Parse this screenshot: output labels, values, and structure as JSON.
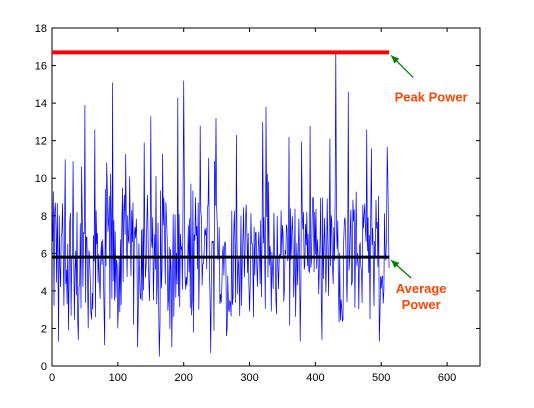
{
  "chart_data": {
    "type": "line",
    "title": "",
    "xlabel": "",
    "ylabel": "",
    "xlim": [
      0,
      650
    ],
    "ylim": [
      0,
      18
    ],
    "xticks": [
      0,
      100,
      200,
      300,
      400,
      500,
      600
    ],
    "yticks": [
      0,
      2,
      4,
      6,
      8,
      10,
      12,
      14,
      16,
      18
    ],
    "x_tick_labels": [
      "0",
      "100",
      "200",
      "300",
      "400",
      "500",
      "600"
    ],
    "y_tick_labels": [
      "0",
      "2",
      "4",
      "6",
      "8",
      "10",
      "12",
      "14",
      "16",
      "18"
    ],
    "grid": false,
    "signal": {
      "color": "#0000ff",
      "x_start": 1,
      "x_end": 512,
      "sample_points": [
        [
          5,
          8.7
        ],
        [
          10,
          1.3
        ],
        [
          20,
          11.0
        ],
        [
          25,
          1.9
        ],
        [
          32,
          10.9
        ],
        [
          40,
          1.4
        ],
        [
          50,
          13.9
        ],
        [
          55,
          2.0
        ],
        [
          65,
          12.6
        ],
        [
          80,
          1.1
        ],
        [
          92,
          15.1
        ],
        [
          100,
          2.0
        ],
        [
          112,
          11.3
        ],
        [
          130,
          1.0
        ],
        [
          140,
          11.9
        ],
        [
          150,
          13.3
        ],
        [
          163,
          0.5
        ],
        [
          168,
          11.3
        ],
        [
          182,
          1.0
        ],
        [
          191,
          14.3
        ],
        [
          200,
          15.2
        ],
        [
          212,
          2.7
        ],
        [
          225,
          12.8
        ],
        [
          241,
          0.7
        ],
        [
          249,
          13.2
        ],
        [
          265,
          1.6
        ],
        [
          280,
          12.3
        ],
        [
          300,
          2.9
        ],
        [
          325,
          13.8
        ],
        [
          340,
          3.5
        ],
        [
          360,
          12.2
        ],
        [
          377,
          1.3
        ],
        [
          392,
          12.8
        ],
        [
          410,
          1.4
        ],
        [
          422,
          12.1
        ],
        [
          431,
          16.7
        ],
        [
          440,
          3.1
        ],
        [
          450,
          14.6
        ],
        [
          460,
          3.1
        ],
        [
          478,
          12.6
        ],
        [
          485,
          11.6
        ],
        [
          497,
          1.3
        ],
        [
          510,
          10.2
        ]
      ],
      "average": 5.8,
      "peak": 16.7
    },
    "series": [
      {
        "color": "#ff0000",
        "x": [
          0,
          512
        ],
        "y": [
          16.7,
          16.7
        ]
      },
      {
        "color": "#000000",
        "x": [
          0,
          512
        ],
        "y": [
          5.8,
          5.8
        ]
      }
    ],
    "annotations": [
      {
        "text": "Peak Power",
        "color": "#ff4400",
        "arrow_color": "#008000",
        "target": [
          512,
          16.7
        ]
      },
      {
        "text": "Average Power",
        "lines": [
          "Average",
          "Power"
        ],
        "color": "#ff4400",
        "arrow_color": "#008000",
        "target": [
          512,
          5.8
        ]
      }
    ]
  }
}
